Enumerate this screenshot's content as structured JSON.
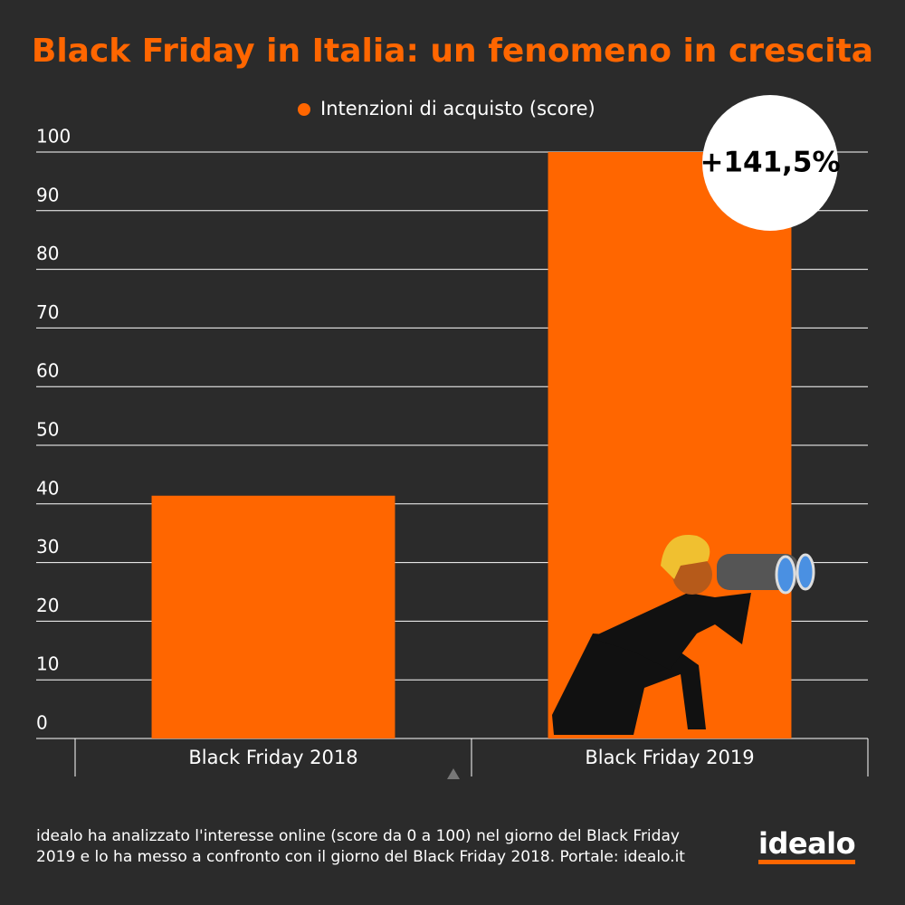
{
  "chart_data": {
    "type": "bar",
    "title": "Black Friday in Italia: un fenomeno in crescita",
    "categories": [
      "Black Friday 2018",
      "Black Friday 2019"
    ],
    "series": [
      {
        "name": "Intenzioni di acquisto (score)",
        "color": "#ff6600",
        "values": [
          41.4,
          100
        ]
      }
    ],
    "ylim": [
      0,
      100
    ],
    "yticks": [
      0,
      10,
      20,
      30,
      40,
      50,
      60,
      70,
      80,
      90,
      100
    ],
    "grid": true,
    "annotation": "+141,5%",
    "footnote": "idealo ha analizzato l'interesse online (score da 0 a 100) nel giorno del Black Friday 2019 e lo ha messo a confronto con il giorno del Black Friday 2018. Portale: idealo.it",
    "logo": "idealo"
  }
}
